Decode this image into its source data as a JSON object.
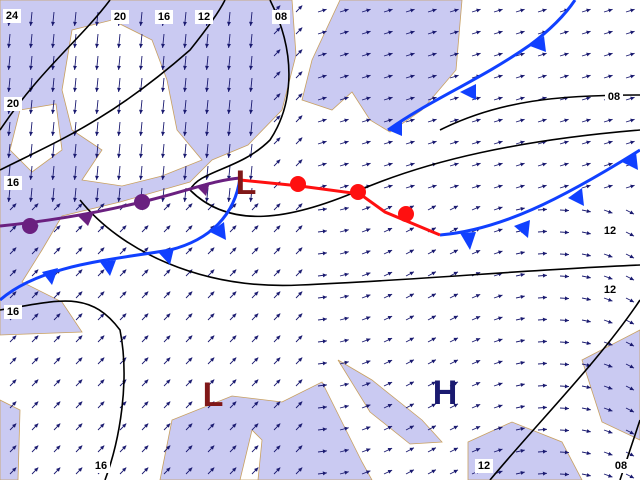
{
  "isobar_labels": [
    "24",
    "20",
    "16",
    "12",
    "08",
    "20",
    "16",
    "16",
    "08",
    "12",
    "12",
    "16",
    "12",
    "08"
  ],
  "pressure_centers": [
    "L",
    "L",
    "H"
  ]
}
